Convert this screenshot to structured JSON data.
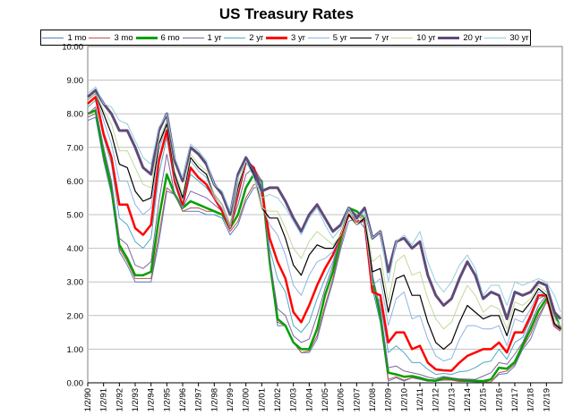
{
  "chart_data": {
    "type": "line",
    "title": "US Treasury Rates",
    "xlabel": "",
    "ylabel": "",
    "ylim": [
      0,
      10
    ],
    "yticks": [
      "0.00",
      "1.00",
      "2.00",
      "3.00",
      "4.00",
      "5.00",
      "6.00",
      "7.00",
      "8.00",
      "9.00",
      "10.00"
    ],
    "xticks": [
      "1/2/90",
      "1/2/91",
      "1/2/92",
      "1/2/93",
      "1/2/94",
      "1/2/95",
      "1/2/96",
      "1/2/97",
      "1/2/98",
      "1/2/99",
      "1/2/00",
      "1/2/01",
      "1/2/02",
      "1/2/03",
      "1/2/04",
      "1/2/05",
      "1/2/06",
      "1/2/07",
      "1/2/08",
      "1/2/09",
      "1/2/10",
      "1/2/11",
      "1/2/12",
      "1/2/13",
      "1/2/14",
      "1/2/15",
      "1/2/16",
      "1/2/17",
      "1/2/18",
      "1/2/19"
    ],
    "x": [
      1990.0,
      1990.5,
      1991.0,
      1991.5,
      1992.0,
      1992.5,
      1993.0,
      1993.5,
      1994.0,
      1994.5,
      1995.0,
      1995.5,
      1996.0,
      1996.5,
      1997.0,
      1997.5,
      1998.0,
      1998.5,
      1999.0,
      1999.5,
      2000.0,
      2000.5,
      2001.0,
      2001.5,
      2002.0,
      2002.5,
      2003.0,
      2003.5,
      2004.0,
      2004.5,
      2005.0,
      2005.5,
      2006.0,
      2006.5,
      2007.0,
      2007.5,
      2008.0,
      2008.5,
      2009.0,
      2009.5,
      2010.0,
      2010.5,
      2011.0,
      2011.5,
      2012.0,
      2012.5,
      2013.0,
      2013.5,
      2014.0,
      2014.5,
      2015.0,
      2015.5,
      2016.0,
      2016.5,
      2017.0,
      2017.5,
      2018.0,
      2018.5,
      2019.0,
      2019.5,
      2019.9
    ],
    "grid": true,
    "legend_position": "top",
    "series": [
      {
        "name": "1 mo",
        "color": "#4f81bd",
        "width": 1,
        "values": [
          7.8,
          7.9,
          6.6,
          5.6,
          3.9,
          3.5,
          3.0,
          3.0,
          3.0,
          4.2,
          5.7,
          5.6,
          5.1,
          5.1,
          5.1,
          5.0,
          5.0,
          4.9,
          4.4,
          4.7,
          5.4,
          5.8,
          5.8,
          3.5,
          1.7,
          1.7,
          1.2,
          0.9,
          0.9,
          1.3,
          2.2,
          3.0,
          4.0,
          4.8,
          4.9,
          4.6,
          2.8,
          1.8,
          0.05,
          0.15,
          0.05,
          0.15,
          0.1,
          0.05,
          0.05,
          0.08,
          0.08,
          0.04,
          0.04,
          0.03,
          0.02,
          0.03,
          0.25,
          0.28,
          0.5,
          1.0,
          1.3,
          1.9,
          2.4,
          2.2,
          1.55
        ]
      },
      {
        "name": "3 mo",
        "color": "#c0504d",
        "width": 1,
        "values": [
          7.9,
          8.0,
          6.7,
          5.7,
          4.0,
          3.6,
          3.1,
          3.1,
          3.1,
          4.4,
          5.8,
          5.6,
          5.1,
          5.2,
          5.2,
          5.1,
          5.1,
          5.0,
          4.5,
          4.8,
          5.5,
          5.9,
          5.9,
          3.6,
          1.8,
          1.7,
          1.2,
          0.9,
          0.95,
          1.4,
          2.3,
          3.1,
          4.1,
          5.0,
          5.0,
          4.8,
          3.0,
          1.9,
          0.1,
          0.18,
          0.08,
          0.15,
          0.12,
          0.05,
          0.06,
          0.09,
          0.08,
          0.04,
          0.05,
          0.04,
          0.03,
          0.02,
          0.3,
          0.35,
          0.55,
          1.05,
          1.45,
          2.0,
          2.4,
          2.1,
          1.6
        ]
      },
      {
        "name": "6 mo",
        "color": "#00a000",
        "width": 2.5,
        "values": [
          8.0,
          8.1,
          6.8,
          5.8,
          4.1,
          3.7,
          3.2,
          3.2,
          3.3,
          4.9,
          6.2,
          5.6,
          5.2,
          5.4,
          5.3,
          5.2,
          5.1,
          5.0,
          4.6,
          5.0,
          5.8,
          6.2,
          6.0,
          3.6,
          1.9,
          1.7,
          1.2,
          1.0,
          1.0,
          1.6,
          2.6,
          3.3,
          4.3,
          5.2,
          5.1,
          4.9,
          3.1,
          2.0,
          0.3,
          0.25,
          0.18,
          0.2,
          0.15,
          0.08,
          0.06,
          0.14,
          0.12,
          0.09,
          0.07,
          0.06,
          0.05,
          0.1,
          0.45,
          0.42,
          0.62,
          1.12,
          1.6,
          2.15,
          2.5,
          2.1,
          1.6
        ]
      },
      {
        "name": "1 yr",
        "color": "#8064a2",
        "width": 1,
        "values": [
          8.0,
          8.2,
          7.0,
          6.0,
          4.3,
          4.1,
          3.5,
          3.4,
          3.6,
          5.4,
          6.8,
          5.6,
          5.2,
          5.7,
          5.6,
          5.5,
          5.3,
          5.1,
          4.6,
          5.3,
          6.2,
          6.4,
          6.0,
          3.7,
          2.2,
          2.0,
          1.4,
          1.2,
          1.3,
          2.0,
          2.8,
          3.5,
          4.4,
          5.2,
          5.0,
          4.9,
          3.2,
          2.2,
          0.45,
          0.5,
          0.35,
          0.3,
          0.25,
          0.17,
          0.12,
          0.19,
          0.15,
          0.12,
          0.11,
          0.1,
          0.2,
          0.3,
          0.6,
          0.55,
          0.85,
          1.2,
          1.75,
          2.3,
          2.6,
          2.0,
          1.6
        ]
      },
      {
        "name": "2 yr",
        "color": "#4bacc6",
        "width": 1,
        "values": [
          8.2,
          8.4,
          7.3,
          6.5,
          4.9,
          4.7,
          4.2,
          4.0,
          4.3,
          6.2,
          7.3,
          5.9,
          5.2,
          6.2,
          6.0,
          5.8,
          5.5,
          5.1,
          4.6,
          5.6,
          6.5,
          6.4,
          5.9,
          4.0,
          3.1,
          2.7,
          1.7,
          1.5,
          1.8,
          2.5,
          3.1,
          3.6,
          4.4,
          5.1,
          4.8,
          4.8,
          2.8,
          2.4,
          0.9,
          1.1,
          0.9,
          0.6,
          0.6,
          0.4,
          0.25,
          0.28,
          0.25,
          0.33,
          0.35,
          0.45,
          0.6,
          0.65,
          1.0,
          0.7,
          1.2,
          1.35,
          1.9,
          2.5,
          2.6,
          1.8,
          1.6
        ]
      },
      {
        "name": "3 yr",
        "color": "#ff0000",
        "width": 2.5,
        "values": [
          8.3,
          8.5,
          7.4,
          6.7,
          5.3,
          5.3,
          4.6,
          4.4,
          4.7,
          6.6,
          7.5,
          6.0,
          5.3,
          6.4,
          6.1,
          5.9,
          5.5,
          5.1,
          4.6,
          5.6,
          6.6,
          6.4,
          5.7,
          4.3,
          3.6,
          3.1,
          2.1,
          1.8,
          2.3,
          2.9,
          3.4,
          3.8,
          4.4,
          5.0,
          4.8,
          4.8,
          2.7,
          2.6,
          1.2,
          1.5,
          1.5,
          1.0,
          1.1,
          0.6,
          0.4,
          0.37,
          0.36,
          0.6,
          0.8,
          0.9,
          1.0,
          1.0,
          1.2,
          0.9,
          1.5,
          1.5,
          2.0,
          2.6,
          2.6,
          1.7,
          1.55
        ]
      },
      {
        "name": "5 yr",
        "color": "#8db4e2",
        "width": 1,
        "values": [
          8.4,
          8.6,
          7.8,
          7.1,
          6.0,
          6.0,
          5.3,
          5.0,
          5.2,
          6.9,
          7.7,
          6.1,
          5.4,
          6.6,
          6.3,
          6.1,
          5.5,
          5.2,
          4.6,
          5.7,
          6.6,
          6.3,
          5.3,
          4.7,
          4.4,
          3.8,
          2.9,
          2.6,
          3.2,
          3.6,
          3.7,
          3.9,
          4.4,
          5.0,
          4.7,
          4.8,
          2.9,
          3.1,
          1.7,
          2.5,
          2.7,
          1.9,
          2.0,
          1.3,
          0.8,
          0.65,
          0.72,
          1.3,
          1.7,
          1.7,
          1.6,
          1.6,
          1.7,
          1.1,
          1.9,
          1.8,
          2.2,
          2.7,
          2.6,
          1.7,
          1.55
        ]
      },
      {
        "name": "7 yr",
        "color": "#000000",
        "width": 1.2,
        "values": [
          8.4,
          8.6,
          8.0,
          7.4,
          6.5,
          6.4,
          5.7,
          5.4,
          5.5,
          7.1,
          7.7,
          6.2,
          5.5,
          6.7,
          6.4,
          6.2,
          5.6,
          5.3,
          4.7,
          5.8,
          6.6,
          6.2,
          5.2,
          4.9,
          4.9,
          4.3,
          3.5,
          3.2,
          3.8,
          4.1,
          4.0,
          4.0,
          4.4,
          5.0,
          4.7,
          4.9,
          3.3,
          3.4,
          2.1,
          3.1,
          3.2,
          2.6,
          2.6,
          1.8,
          1.2,
          1.0,
          1.2,
          1.8,
          2.3,
          2.1,
          1.9,
          2.0,
          2.0,
          1.4,
          2.2,
          2.1,
          2.4,
          2.8,
          2.6,
          1.75,
          1.6
        ]
      },
      {
        "name": "10 yr",
        "color": "#c4d79b",
        "width": 1,
        "values": [
          8.4,
          8.6,
          8.1,
          7.7,
          6.9,
          6.9,
          6.4,
          5.9,
          5.8,
          7.2,
          7.8,
          6.3,
          5.6,
          6.8,
          6.5,
          6.3,
          5.6,
          5.3,
          4.7,
          5.9,
          6.6,
          6.1,
          5.2,
          5.1,
          5.1,
          4.6,
          4.0,
          3.7,
          4.2,
          4.5,
          4.3,
          4.1,
          4.4,
          5.1,
          4.7,
          5.0,
          3.6,
          3.8,
          2.4,
          3.6,
          3.8,
          3.2,
          3.3,
          2.5,
          1.9,
          1.6,
          1.8,
          2.4,
          2.9,
          2.6,
          2.1,
          2.3,
          2.2,
          1.6,
          2.4,
          2.3,
          2.5,
          2.9,
          2.7,
          1.9,
          1.7
        ]
      },
      {
        "name": "20 yr",
        "color": "#604a7b",
        "width": 3,
        "values": [
          8.5,
          8.7,
          8.3,
          8.0,
          7.5,
          7.5,
          7.0,
          6.4,
          6.2,
          7.5,
          8.0,
          6.6,
          6.0,
          7.0,
          6.8,
          6.5,
          5.9,
          5.6,
          5.0,
          6.2,
          6.7,
          6.3,
          5.7,
          5.8,
          5.8,
          5.4,
          4.9,
          4.5,
          5.0,
          5.3,
          4.9,
          4.5,
          4.7,
          5.2,
          4.9,
          5.2,
          4.3,
          4.5,
          3.3,
          4.2,
          4.3,
          4.0,
          4.2,
          3.2,
          2.6,
          2.3,
          2.5,
          3.1,
          3.6,
          3.2,
          2.5,
          2.7,
          2.6,
          1.9,
          2.7,
          2.6,
          2.7,
          3.0,
          2.9,
          2.1,
          1.9
        ]
      },
      {
        "name": "30 yr",
        "color": "#93cddd",
        "width": 1,
        "values": [
          8.6,
          8.8,
          8.3,
          8.2,
          7.8,
          7.7,
          7.2,
          6.7,
          6.5,
          7.6,
          8.0,
          6.7,
          6.1,
          7.1,
          6.9,
          6.6,
          5.9,
          5.7,
          5.1,
          6.1,
          6.6,
          6.1,
          5.5,
          5.6,
          5.5,
          5.2,
          4.8,
          4.4,
          4.9,
          5.2,
          4.7,
          4.3,
          4.6,
          5.2,
          4.8,
          5.1,
          4.3,
          4.5,
          3.0,
          4.2,
          4.4,
          4.1,
          4.5,
          3.6,
          3.0,
          2.7,
          3.0,
          3.5,
          3.8,
          3.4,
          2.6,
          2.9,
          2.9,
          2.3,
          3.0,
          2.9,
          3.0,
          3.1,
          3.0,
          2.6,
          2.1
        ]
      }
    ]
  }
}
